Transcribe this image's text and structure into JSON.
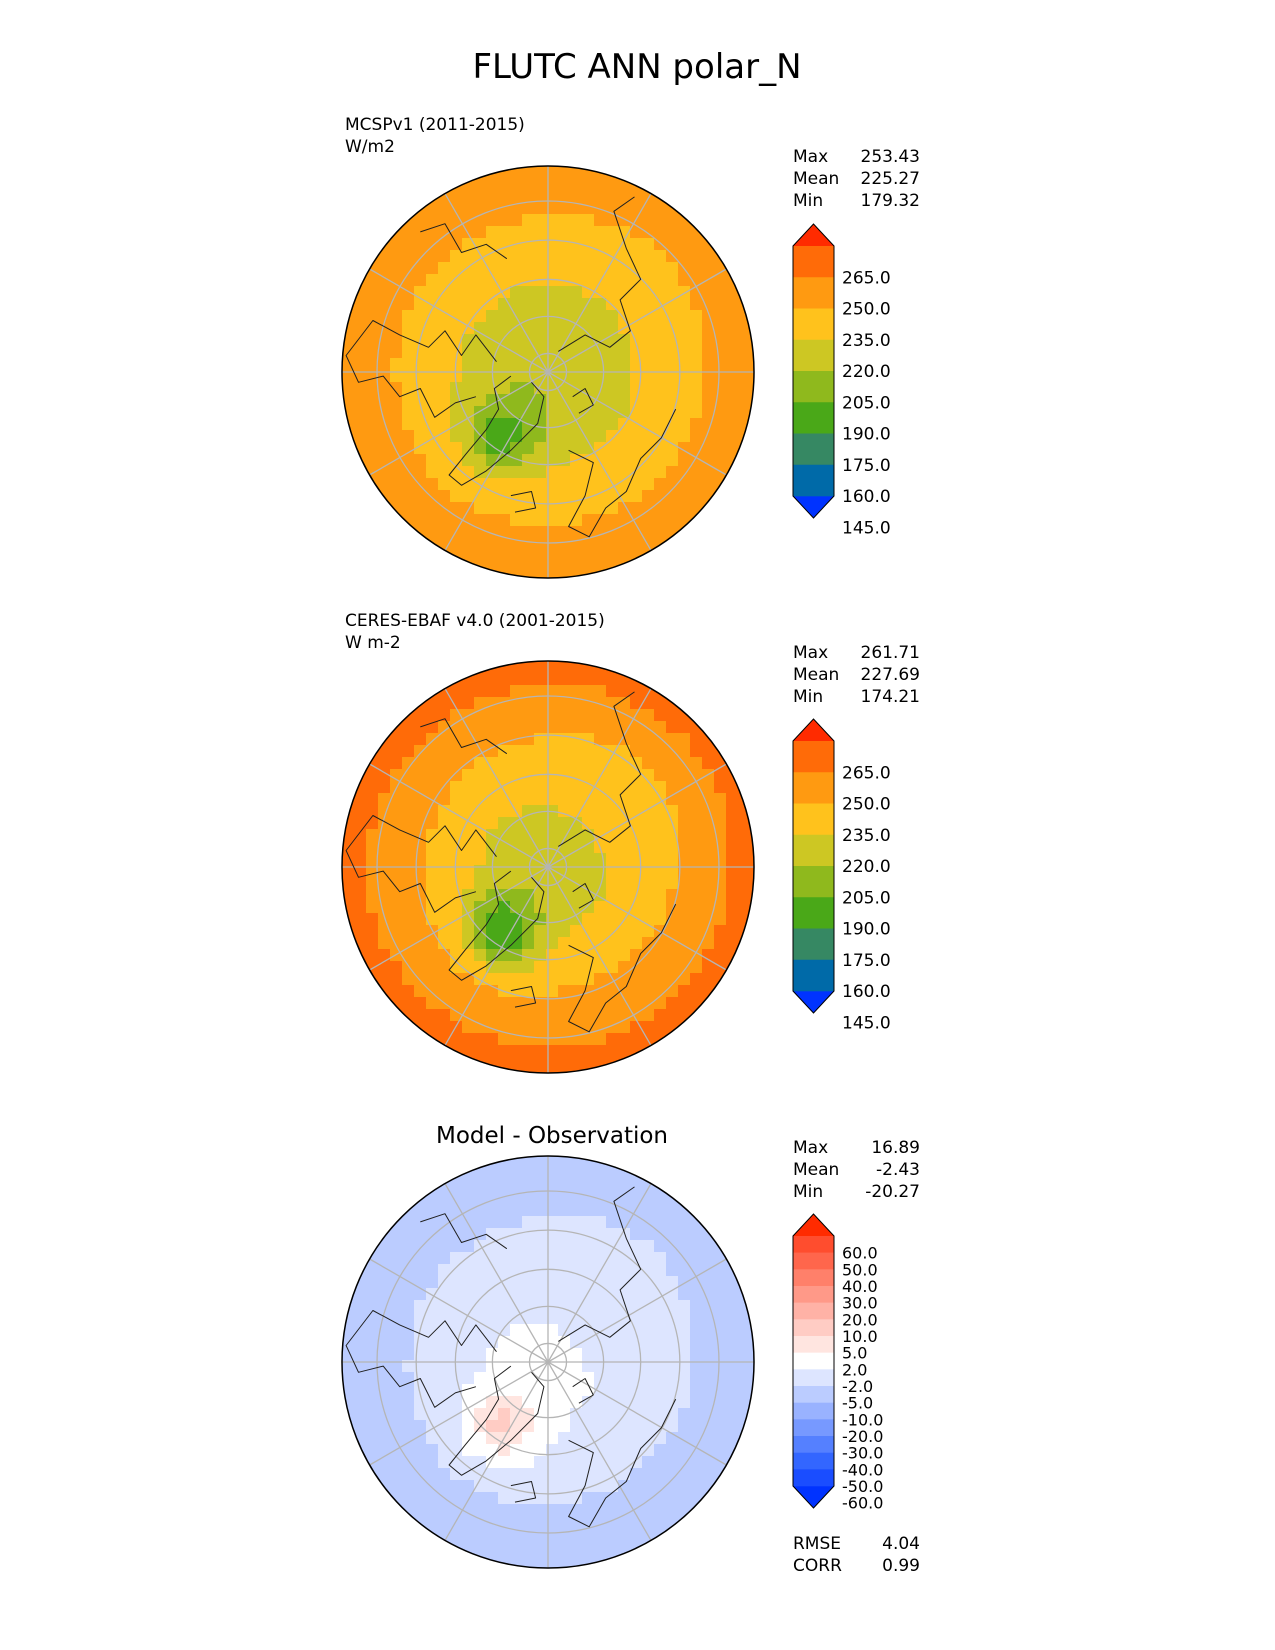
{
  "figure": {
    "title": "FLUTC ANN polar_N"
  },
  "colors": {
    "full_field": [
      "#0033ff",
      "#006aa8",
      "#368863",
      "#4aa818",
      "#8fb91d",
      "#cdc723",
      "#ffc21c",
      "#ff9a11",
      "#ff6b08",
      "#ff2b00"
    ],
    "diff_field": [
      "#0033ff",
      "#1a4dff",
      "#3366ff",
      "#5580ff",
      "#7799ff",
      "#99b2ff",
      "#bbccff",
      "#dde5ff",
      "#ffffff",
      "#ffe5e0",
      "#ffccc4",
      "#ffb2a6",
      "#ff9988",
      "#ff806a",
      "#ff664c",
      "#ff4d2e",
      "#ff2b00"
    ],
    "grid": "#b5b5b5",
    "coast": "#202020"
  },
  "chart_data": [
    {
      "type": "heatmap",
      "projection": "north polar stereographic",
      "title": "",
      "left_title": "MCSPv1 (2011-2015)",
      "units": "W/m2",
      "stats": [
        {
          "label": "Max",
          "value": "253.43"
        },
        {
          "label": "Mean",
          "value": "225.27"
        },
        {
          "label": "Min",
          "value": "179.32"
        }
      ],
      "colorbar": {
        "levels": [
          145,
          160,
          175,
          190,
          205,
          220,
          235,
          250,
          265
        ],
        "tick_labels": [
          "265.0",
          "250.0",
          "235.0",
          "220.0",
          "205.0",
          "190.0",
          "175.0",
          "160.0",
          "145.0"
        ],
        "extend": "both"
      },
      "field": {
        "pole_value": 200,
        "greenland_min": 180,
        "ocean_high": 245,
        "siberia_mid": 220
      }
    },
    {
      "type": "heatmap",
      "projection": "north polar stereographic",
      "title": "",
      "left_title": "CERES-EBAF v4.0 (2001-2015)",
      "units": "W m-2",
      "stats": [
        {
          "label": "Max",
          "value": "261.71"
        },
        {
          "label": "Mean",
          "value": "227.69"
        },
        {
          "label": "Min",
          "value": "174.21"
        }
      ],
      "colorbar": {
        "levels": [
          145,
          160,
          175,
          190,
          205,
          220,
          235,
          250,
          265
        ],
        "tick_labels": [
          "265.0",
          "250.0",
          "235.0",
          "220.0",
          "205.0",
          "190.0",
          "175.0",
          "160.0",
          "145.0"
        ],
        "extend": "both"
      },
      "field": {
        "pole_value": 203,
        "greenland_min": 175,
        "ocean_high": 254,
        "siberia_mid": 222
      }
    },
    {
      "type": "heatmap",
      "projection": "north polar stereographic",
      "title": "Model - Observation",
      "left_title": "",
      "units": "",
      "stats": [
        {
          "label": "Max",
          "value": "16.89"
        },
        {
          "label": "Mean",
          "value": "-2.43"
        },
        {
          "label": "Min",
          "value": "-20.27"
        }
      ],
      "colorbar": {
        "levels": [
          -60,
          -50,
          -40,
          -30,
          -20,
          -10,
          -5,
          -2,
          2,
          5,
          10,
          20,
          30,
          40,
          50,
          60
        ],
        "tick_labels": [
          "60.0",
          "50.0",
          "40.0",
          "30.0",
          "20.0",
          "10.0",
          "5.0",
          "2.0",
          "-2.0",
          "-5.0",
          "-10.0",
          "-20.0",
          "-30.0",
          "-40.0",
          "-50.0",
          "-60.0"
        ],
        "extend": "both"
      },
      "metrics": [
        {
          "label": "RMSE",
          "value": "4.04"
        },
        {
          "label": "CORR",
          "value": "0.99"
        }
      ],
      "field": {
        "pole_value": 0,
        "greenland_min": 6,
        "ocean_high": -7,
        "siberia_mid": -3
      }
    }
  ]
}
